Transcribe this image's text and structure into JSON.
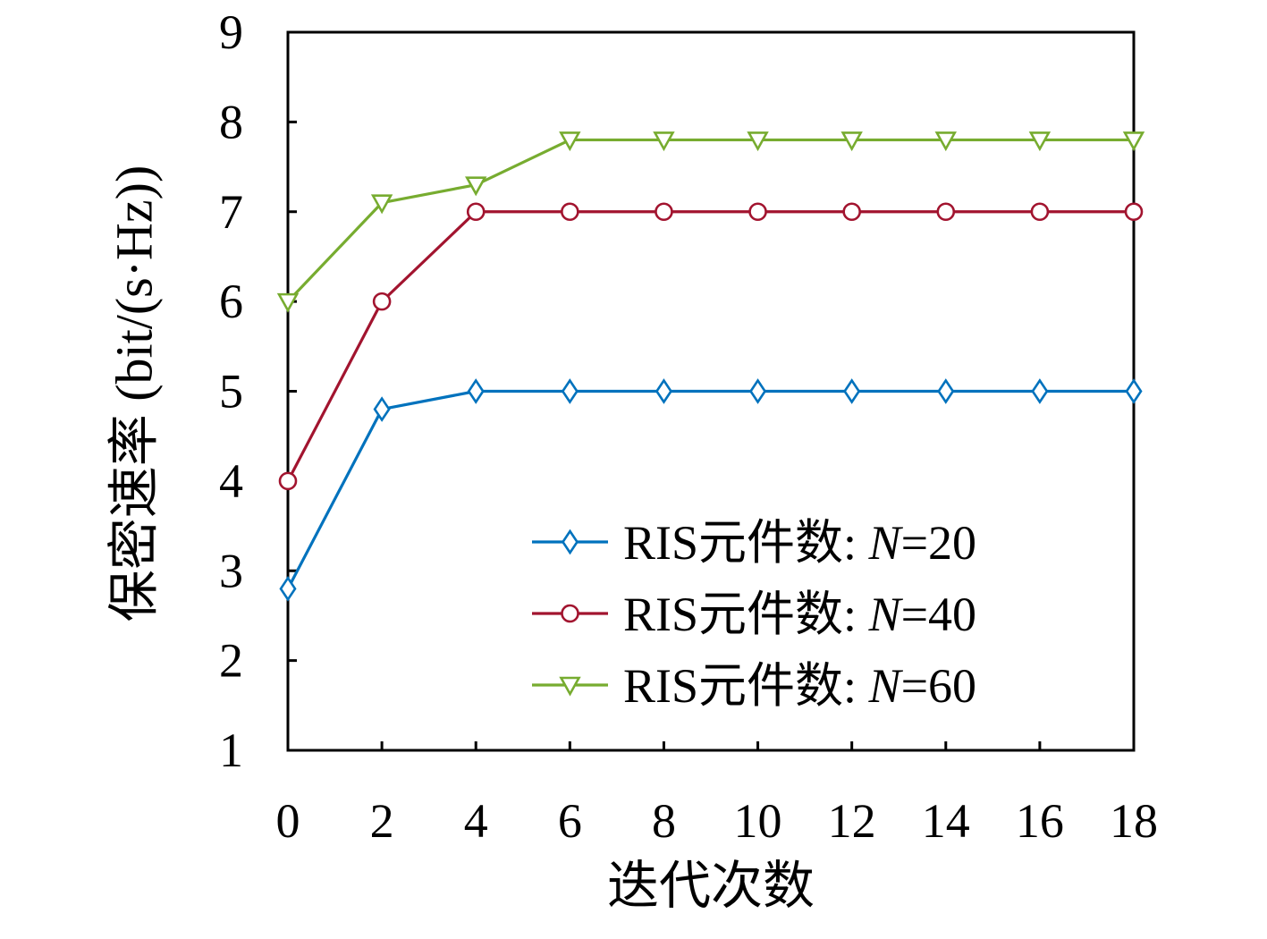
{
  "chart_data": {
    "type": "line",
    "xlabel": "迭代次数",
    "ylabel": "保密速率 (bit/(s·Hz))",
    "x": [
      0,
      2,
      4,
      6,
      8,
      10,
      12,
      14,
      16,
      18
    ],
    "xticks": [
      0,
      2,
      4,
      6,
      8,
      10,
      12,
      14,
      16,
      18
    ],
    "yticks": [
      1,
      2,
      3,
      4,
      5,
      6,
      7,
      8,
      9
    ],
    "xlim": [
      0,
      18
    ],
    "ylim": [
      1,
      9
    ],
    "grid": false,
    "legend": "bottom-right",
    "series": [
      {
        "name": "RIS元件数: N=20",
        "color": "#0072BD",
        "marker": "diamond",
        "values": [
          2.8,
          4.8,
          5,
          5,
          5,
          5,
          5,
          5,
          5,
          5
        ]
      },
      {
        "name": "RIS元件数: N=40",
        "color": "#A2142F",
        "marker": "circle",
        "values": [
          4,
          6,
          7,
          7,
          7,
          7,
          7,
          7,
          7,
          7
        ]
      },
      {
        "name": "RIS元件数: N=60",
        "color": "#77AC30",
        "marker": "triangle-down",
        "values": [
          6,
          7.1,
          7.3,
          7.8,
          7.8,
          7.8,
          7.8,
          7.8,
          7.8,
          7.8
        ]
      }
    ]
  }
}
